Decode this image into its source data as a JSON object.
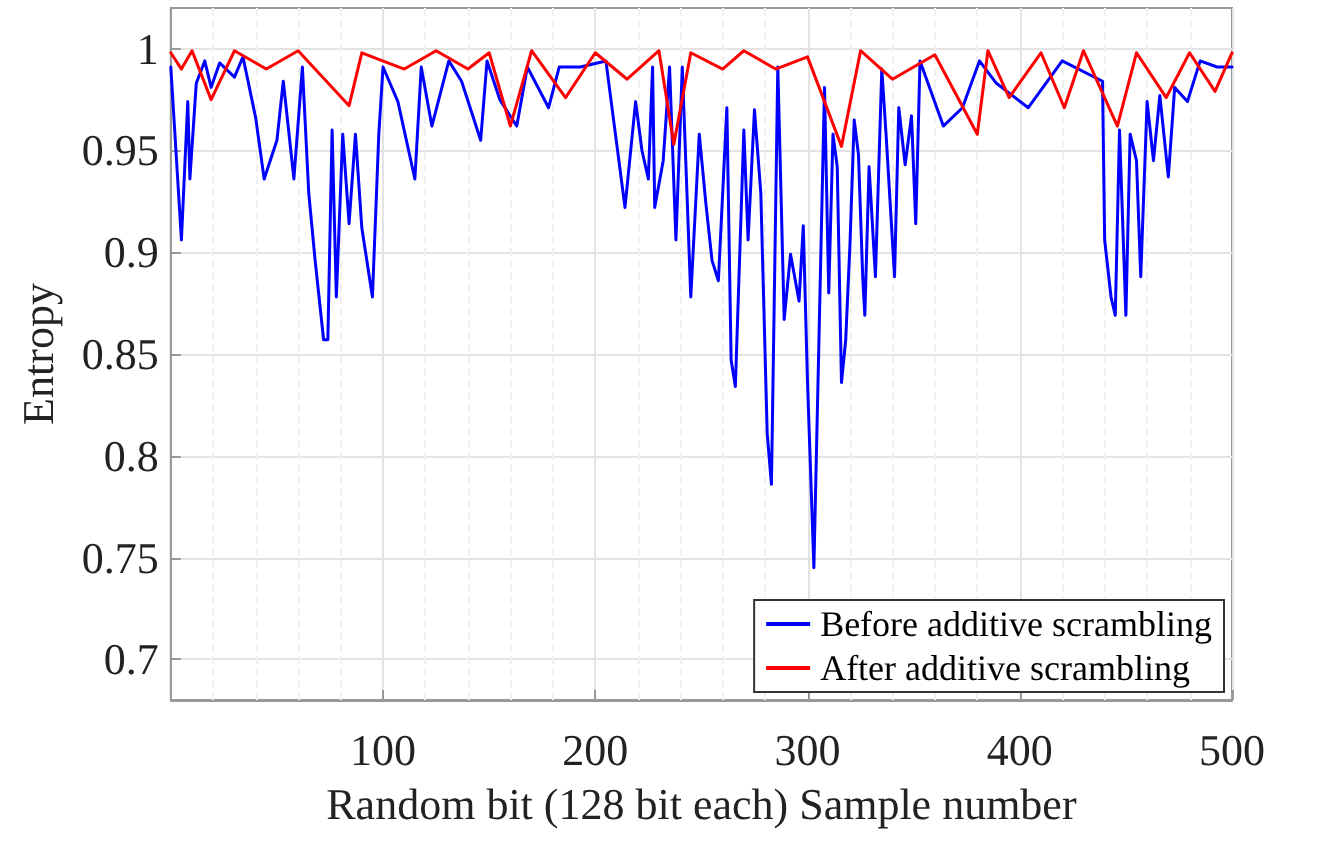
{
  "chart_data": {
    "type": "line",
    "xlabel": "Random bit (128 bit each) Sample number",
    "ylabel": "Entropy",
    "xlim": [
      0,
      500
    ],
    "xticks": [
      100,
      200,
      300,
      400,
      500
    ],
    "ylim": [
      0.68,
      1.02
    ],
    "yticks": [
      0.7,
      0.75,
      0.8,
      0.85,
      0.9,
      0.95,
      1
    ],
    "grid": true,
    "legend": "bottom right",
    "marker": "none",
    "line_style": "solid",
    "series": [
      {
        "name": "Before additive scrambling",
        "color": "#0000ff",
        "x": [
          0,
          5,
          8,
          9,
          12,
          16,
          19,
          23,
          30,
          34,
          40,
          44,
          50,
          53,
          58,
          62,
          65,
          68,
          72,
          74,
          76,
          78,
          81,
          84,
          87,
          90,
          95,
          98,
          100,
          107,
          115,
          118,
          123,
          131,
          137,
          146,
          149,
          155,
          163,
          168,
          178,
          183,
          193,
          205,
          214,
          219,
          222,
          225,
          227,
          228,
          232,
          235,
          238,
          241,
          245,
          249,
          252,
          255,
          258,
          262,
          264,
          266,
          270,
          272,
          275,
          278,
          281,
          283,
          286,
          289,
          292,
          296,
          298,
          300,
          303,
          306,
          308,
          310,
          312,
          314,
          316,
          318,
          320,
          322,
          324,
          326,
          327,
          329,
          332,
          335,
          337,
          341,
          343,
          346,
          349,
          351,
          353,
          364,
          373,
          381,
          389,
          404,
          420,
          439,
          440,
          443,
          445,
          447,
          450,
          452,
          455,
          457,
          460,
          463,
          466,
          470,
          473,
          479,
          485,
          493,
          500
        ],
        "values": [
          0.991,
          0.906,
          0.974,
          0.936,
          0.983,
          0.994,
          0.981,
          0.993,
          0.986,
          0.996,
          0.966,
          0.936,
          0.955,
          0.984,
          0.936,
          0.991,
          0.929,
          0.896,
          0.857,
          0.857,
          0.96,
          0.878,
          0.958,
          0.914,
          0.958,
          0.912,
          0.878,
          0.958,
          0.991,
          0.974,
          0.936,
          0.991,
          0.962,
          0.994,
          0.984,
          0.955,
          0.994,
          0.975,
          0.962,
          0.991,
          0.971,
          0.991,
          0.991,
          0.994,
          0.922,
          0.974,
          0.95,
          0.936,
          0.991,
          0.922,
          0.945,
          0.991,
          0.906,
          0.991,
          0.878,
          0.958,
          0.925,
          0.896,
          0.886,
          0.971,
          0.847,
          0.834,
          0.96,
          0.906,
          0.97,
          0.929,
          0.811,
          0.786,
          0.991,
          0.867,
          0.899,
          0.876,
          0.913,
          0.836,
          0.745,
          0.886,
          0.981,
          0.88,
          0.958,
          0.942,
          0.836,
          0.857,
          0.904,
          0.965,
          0.948,
          0.888,
          0.869,
          0.942,
          0.888,
          0.99,
          0.958,
          0.888,
          0.971,
          0.943,
          0.967,
          0.914,
          0.994,
          0.962,
          0.971,
          0.994,
          0.983,
          0.971,
          0.994,
          0.984,
          0.906,
          0.878,
          0.869,
          0.96,
          0.869,
          0.958,
          0.945,
          0.888,
          0.974,
          0.945,
          0.977,
          0.937,
          0.981,
          0.974,
          0.994,
          0.991,
          0.991
        ]
      },
      {
        "name": "After additive scrambling",
        "color": "#ff0000",
        "x": [
          0,
          5,
          10,
          19,
          30,
          45,
          60,
          84,
          90,
          110,
          125,
          140,
          150,
          160,
          170,
          186,
          200,
          215,
          230,
          237,
          245,
          260,
          270,
          285,
          300,
          316,
          325,
          340,
          360,
          380,
          385,
          395,
          410,
          421,
          430,
          446,
          455,
          469,
          480,
          492,
          500
        ],
        "values": [
          0.998,
          0.99,
          0.999,
          0.975,
          0.999,
          0.99,
          0.999,
          0.972,
          0.998,
          0.99,
          0.999,
          0.99,
          0.998,
          0.962,
          0.999,
          0.976,
          0.998,
          0.985,
          0.999,
          0.953,
          0.998,
          0.99,
          0.999,
          0.99,
          0.996,
          0.952,
          0.999,
          0.985,
          0.997,
          0.958,
          0.999,
          0.976,
          0.998,
          0.971,
          0.999,
          0.962,
          0.998,
          0.976,
          0.998,
          0.979,
          0.998
        ]
      }
    ]
  }
}
